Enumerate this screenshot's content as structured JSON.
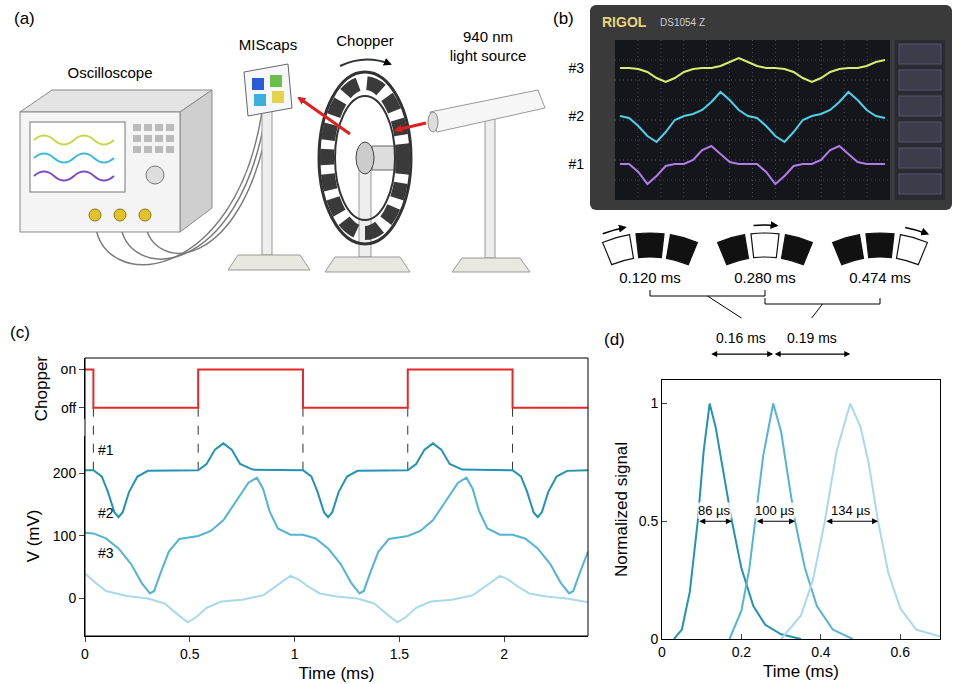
{
  "panel_labels": [
    "(a)",
    "(b)",
    "(c)",
    "(d)"
  ],
  "panel_a": {
    "oscilloscope": "Oscilloscope",
    "sample": "MIScaps",
    "chopper": "Chopper",
    "source": "940 nm light source"
  },
  "panel_b": {
    "brand": "RIGOL",
    "model": "DS1054 Z",
    "ylim": [
      -4,
      4
    ],
    "traces": [
      {
        "name": "#3",
        "color": "#d9ec6e",
        "values": [
          2.6,
          2.6,
          2.55,
          2.4,
          2.1,
          1.9,
          2.1,
          2.4,
          2.55,
          2.6,
          2.6,
          2.7,
          2.9,
          3.1,
          2.9,
          2.7,
          2.6,
          2.6,
          2.55,
          2.4,
          2.1,
          1.9,
          2.1,
          2.4,
          2.55,
          2.6,
          2.6,
          2.7,
          2.9,
          3.0
        ]
      },
      {
        "name": "#2",
        "color": "#4fd0e6",
        "values": [
          0.2,
          0.1,
          -0.3,
          -0.8,
          -1.1,
          -0.6,
          0,
          0.2,
          0.3,
          0.5,
          0.9,
          1.4,
          1.0,
          0.5,
          0.2,
          0.1,
          -0.3,
          -0.8,
          -1.1,
          -0.6,
          0,
          0.2,
          0.3,
          0.5,
          0.9,
          1.4,
          1.0,
          0.5,
          0.2,
          0.1
        ]
      },
      {
        "name": "#1",
        "color": "#b07ce8",
        "values": [
          -2.2,
          -2.2,
          -2.6,
          -3.2,
          -2.8,
          -2.3,
          -2.2,
          -2.2,
          -2.0,
          -1.5,
          -1.3,
          -1.7,
          -2.1,
          -2.2,
          -2.2,
          -2.2,
          -2.6,
          -3.2,
          -2.8,
          -2.3,
          -2.2,
          -2.2,
          -2.0,
          -1.5,
          -1.3,
          -1.7,
          -2.1,
          -2.2,
          -2.2,
          -2.2
        ]
      }
    ],
    "timings": [
      {
        "value": 0.12,
        "label": "0.120 ms"
      },
      {
        "value": 0.28,
        "label": "0.280 ms"
      },
      {
        "value": 0.474,
        "label": "0.474 ms"
      }
    ]
  },
  "chart_data": [
    {
      "label": "(c)",
      "type": "line",
      "y_title": "Chopper",
      "line_style": "step",
      "color": "#e8262a",
      "x": [
        0,
        0.04,
        0.54,
        1.04,
        1.54,
        2.04,
        2.4
      ],
      "values": [
        1,
        0,
        1,
        0,
        1,
        0,
        0
      ],
      "xlim": [
        0,
        2.4
      ],
      "ylim": [
        -0.3,
        1.3
      ],
      "yticks": [
        {
          "value": 1,
          "label": "on"
        },
        {
          "value": 0,
          "label": "off"
        }
      ],
      "tick_labels": "y"
    },
    {
      "type": "line",
      "x_title": "Time (ms)",
      "y_title": "V (mV)",
      "xlim": [
        0,
        2.4
      ],
      "xticks": [
        0,
        0.5,
        1,
        1.5,
        2
      ],
      "ylim": [
        -60,
        260
      ],
      "yticks": [
        0,
        100,
        200
      ],
      "series": [
        {
          "name": "#1",
          "color": "#2293b3",
          "x": [
            0,
            0.04,
            0.08,
            0.11,
            0.14,
            0.16,
            0.18,
            0.21,
            0.25,
            0.3,
            0.54,
            0.58,
            0.62,
            0.66,
            0.7,
            0.74,
            0.8,
            1.04,
            1.08,
            1.11,
            1.14,
            1.16,
            1.18,
            1.21,
            1.25,
            1.3,
            1.54,
            1.58,
            1.62,
            1.66,
            1.7,
            1.74,
            1.8,
            2.04,
            2.08,
            2.11,
            2.14,
            2.16,
            2.18,
            2.21,
            2.25,
            2.3,
            2.4
          ],
          "values": [
            205,
            205,
            195,
            170,
            138,
            130,
            138,
            170,
            195,
            204,
            205,
            215,
            238,
            248,
            238,
            215,
            206,
            205,
            195,
            170,
            138,
            130,
            138,
            170,
            195,
            204,
            205,
            215,
            238,
            248,
            238,
            215,
            206,
            205,
            195,
            170,
            138,
            130,
            138,
            170,
            195,
            204,
            205
          ]
        },
        {
          "name": "#2",
          "color": "#52b4d6",
          "x": [
            0,
            0.04,
            0.1,
            0.16,
            0.22,
            0.27,
            0.31,
            0.33,
            0.36,
            0.4,
            0.45,
            0.54,
            0.6,
            0.66,
            0.72,
            0.78,
            0.82,
            0.85,
            0.88,
            0.92,
            0.98,
            1.04,
            1.1,
            1.16,
            1.22,
            1.27,
            1.31,
            1.33,
            1.36,
            1.4,
            1.45,
            1.54,
            1.6,
            1.66,
            1.72,
            1.78,
            1.82,
            1.85,
            1.88,
            1.92,
            1.98,
            2.04,
            2.1,
            2.16,
            2.22,
            2.27,
            2.31,
            2.33,
            2.36,
            2.4
          ],
          "values": [
            105,
            104,
            96,
            80,
            55,
            25,
            8,
            12,
            40,
            75,
            95,
            100,
            108,
            125,
            155,
            185,
            193,
            175,
            140,
            112,
            102,
            102,
            96,
            80,
            55,
            25,
            8,
            12,
            40,
            75,
            95,
            100,
            108,
            125,
            155,
            185,
            193,
            175,
            140,
            112,
            102,
            102,
            96,
            80,
            55,
            25,
            8,
            12,
            40,
            75
          ]
        },
        {
          "name": "#3",
          "color": "#a9d9ee",
          "x": [
            0,
            0.05,
            0.1,
            0.2,
            0.3,
            0.38,
            0.44,
            0.49,
            0.53,
            0.58,
            0.65,
            0.75,
            0.85,
            0.92,
            0.98,
            1.02,
            1.07,
            1.12,
            1.2,
            1.3,
            1.38,
            1.44,
            1.49,
            1.53,
            1.58,
            1.65,
            1.75,
            1.85,
            1.92,
            1.98,
            2.02,
            2.07,
            2.12,
            2.2,
            2.3,
            2.4
          ],
          "values": [
            40,
            25,
            12,
            4,
            0,
            -8,
            -25,
            -38,
            -30,
            -15,
            -5,
            -2,
            5,
            22,
            36,
            30,
            18,
            8,
            3,
            0,
            -8,
            -25,
            -38,
            -30,
            -15,
            -5,
            -2,
            5,
            22,
            36,
            30,
            18,
            8,
            3,
            0,
            -6
          ]
        }
      ]
    },
    {
      "label": "(d)",
      "type": "line",
      "x_title": "Time (ms)",
      "y_title": "Normalized signal",
      "xlim": [
        0,
        0.7
      ],
      "xticks": [
        0,
        0.2,
        0.4,
        0.6
      ],
      "ylim": [
        0,
        1.1
      ],
      "yticks": [
        0,
        0.5,
        1
      ],
      "series": [
        {
          "color": "#2293b3",
          "x": [
            0.03,
            0.05,
            0.07,
            0.09,
            0.105,
            0.12,
            0.135,
            0.15,
            0.176,
            0.2,
            0.23,
            0.26,
            0.3,
            0.35
          ],
          "values": [
            0,
            0.04,
            0.2,
            0.5,
            0.8,
            1,
            0.9,
            0.75,
            0.5,
            0.3,
            0.14,
            0.06,
            0.02,
            0
          ]
        },
        {
          "color": "#52b4d6",
          "x": [
            0.17,
            0.2,
            0.22,
            0.235,
            0.255,
            0.28,
            0.3,
            0.32,
            0.335,
            0.36,
            0.39,
            0.43,
            0.48
          ],
          "values": [
            0,
            0.12,
            0.3,
            0.5,
            0.78,
            1,
            0.88,
            0.66,
            0.5,
            0.3,
            0.14,
            0.04,
            0
          ]
        },
        {
          "color": "#a9d9ee",
          "x": [
            0.3,
            0.35,
            0.38,
            0.41,
            0.44,
            0.474,
            0.5,
            0.52,
            0.544,
            0.57,
            0.6,
            0.64,
            0.7
          ],
          "values": [
            0,
            0.1,
            0.25,
            0.5,
            0.8,
            1,
            0.9,
            0.75,
            0.5,
            0.28,
            0.13,
            0.04,
            0.01
          ]
        }
      ],
      "widths": [
        {
          "from": 0.09,
          "to": 0.176,
          "y": 0.5,
          "label": "86 µs"
        },
        {
          "from": 0.235,
          "to": 0.335,
          "y": 0.5,
          "label": "100 µs"
        },
        {
          "from": 0.41,
          "to": 0.544,
          "y": 0.5,
          "label": "134 µs"
        }
      ],
      "delays": [
        {
          "from": 0.12,
          "to": 0.28,
          "label": "0.16 ms"
        },
        {
          "from": 0.28,
          "to": 0.474,
          "label": "0.19 ms"
        }
      ]
    }
  ]
}
